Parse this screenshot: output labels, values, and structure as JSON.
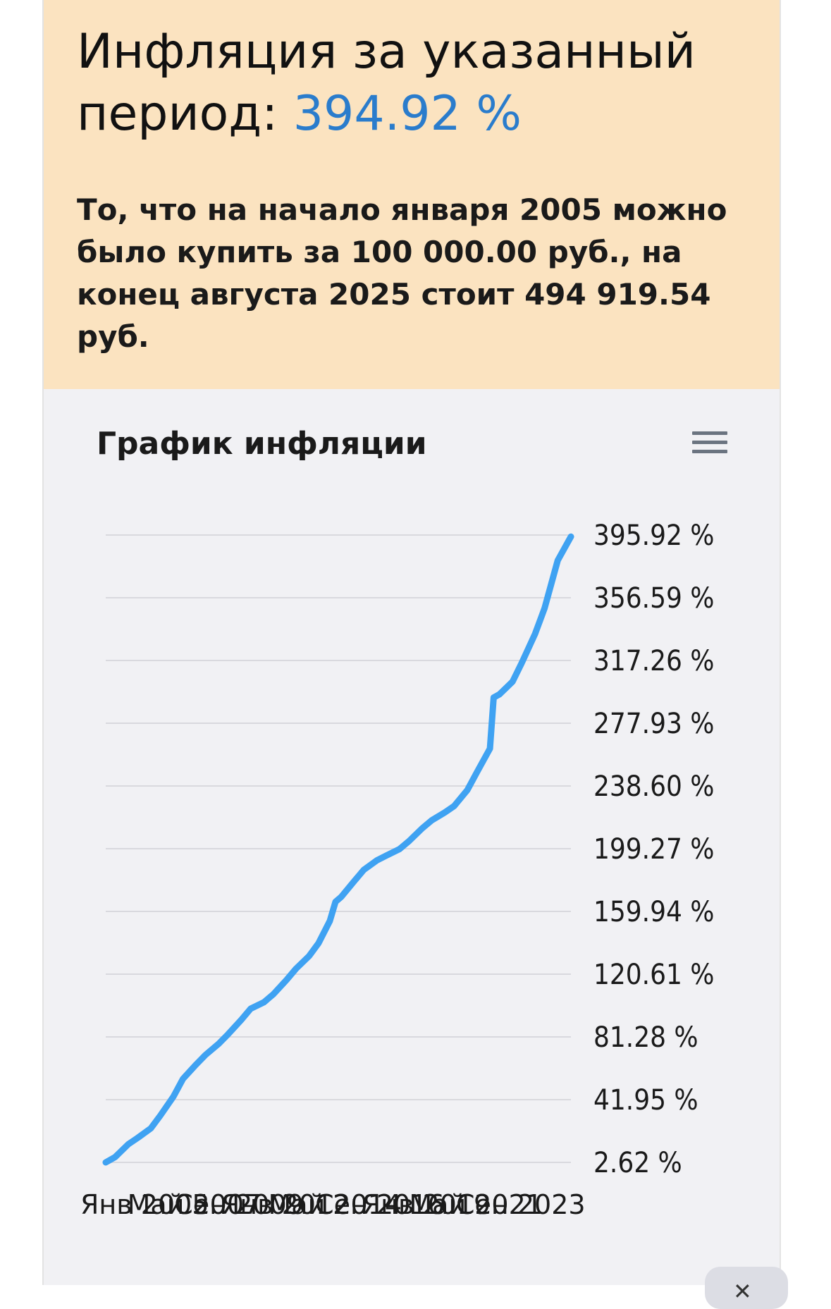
{
  "summary": {
    "heading": "Инфляция за указанный период: ",
    "value": "394.92 %",
    "description": "То, что на начало января 2005 можно было купить за 100 000.00 руб., на конец августа 2025 стоит 494 919.54 руб."
  },
  "chart_panel": {
    "title": "График инфляции",
    "menu_icon": "hamburger-menu-icon",
    "scroll_icon": "chevron-down-icon"
  },
  "colors": {
    "summary_bg": "#fbe3c0",
    "value_accent": "#2a7ccc",
    "line": "#3fa2f2",
    "chart_bg": "#f1f1f4",
    "grid": "#d9d9de"
  },
  "chart_data": {
    "type": "line",
    "title": "График инфляции",
    "ylabel": "",
    "ylim": [
      2.62,
      395.92
    ],
    "yticks": [
      "2.62 %",
      "41.95 %",
      "81.28 %",
      "120.61 %",
      "159.94 %",
      "199.27 %",
      "238.60 %",
      "277.93 %",
      "317.26 %",
      "356.59 %",
      "395.92 %"
    ],
    "x_tick_labels": [
      "Янв 2005",
      "Май 2007",
      "Сен 2009",
      "Янв 2012",
      "Май 2014",
      "Сен 2016",
      "Янв 2019",
      "Май 2021",
      "Сен 2023"
    ],
    "grid": true,
    "legend": "none",
    "series": [
      {
        "x": [
          "2005-01",
          "2005-06",
          "2006-01",
          "2006-06",
          "2007-01",
          "2007-06",
          "2008-01",
          "2008-06",
          "2009-01",
          "2009-06",
          "2010-01",
          "2010-06",
          "2011-01",
          "2011-06",
          "2012-01",
          "2012-06",
          "2013-01",
          "2013-06",
          "2014-01",
          "2014-06",
          "2014-12",
          "2015-03",
          "2015-06",
          "2016-01",
          "2016-06",
          "2017-01",
          "2017-06",
          "2018-01",
          "2018-06",
          "2019-01",
          "2019-06",
          "2020-01",
          "2020-06",
          "2021-01",
          "2021-06",
          "2022-01",
          "2022-03",
          "2022-06",
          "2023-01",
          "2023-06",
          "2024-01",
          "2024-06",
          "2025-01",
          "2025-08"
        ],
        "y": [
          2.62,
          6,
          14,
          18,
          24,
          32,
          44,
          55,
          64,
          70,
          77,
          83,
          92,
          99,
          103,
          108,
          117,
          124,
          132,
          140,
          154,
          166,
          169,
          179,
          186,
          192,
          195,
          199,
          204,
          212,
          217,
          222,
          226,
          236,
          247,
          262,
          294,
          296,
          304,
          316,
          334,
          350,
          380,
          394.92
        ]
      }
    ]
  }
}
